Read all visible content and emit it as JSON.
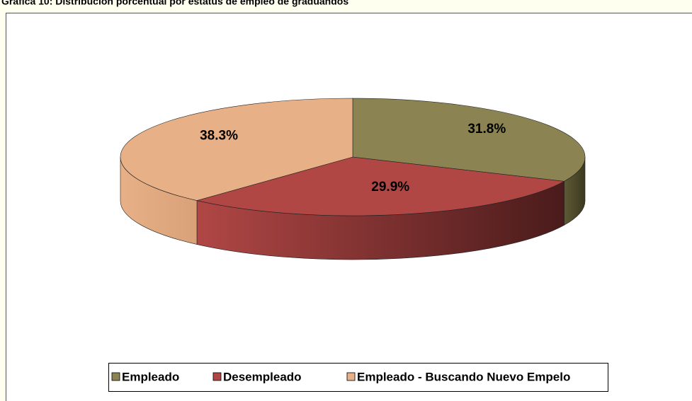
{
  "chart_data": {
    "type": "pie",
    "title": "Gráfica 10: Distribución porcentual por estatus de empleo de graduandos",
    "categories": [
      "Empleado",
      "Desempleado",
      "Empleado - Buscando Nuevo Empelo"
    ],
    "values": [
      31.8,
      29.9,
      38.3
    ],
    "value_labels": [
      "31.8%",
      "29.9%",
      "38.3%"
    ],
    "colors": [
      "#8b8452",
      "#b04745",
      "#e8b087"
    ],
    "legend": "bottom"
  }
}
